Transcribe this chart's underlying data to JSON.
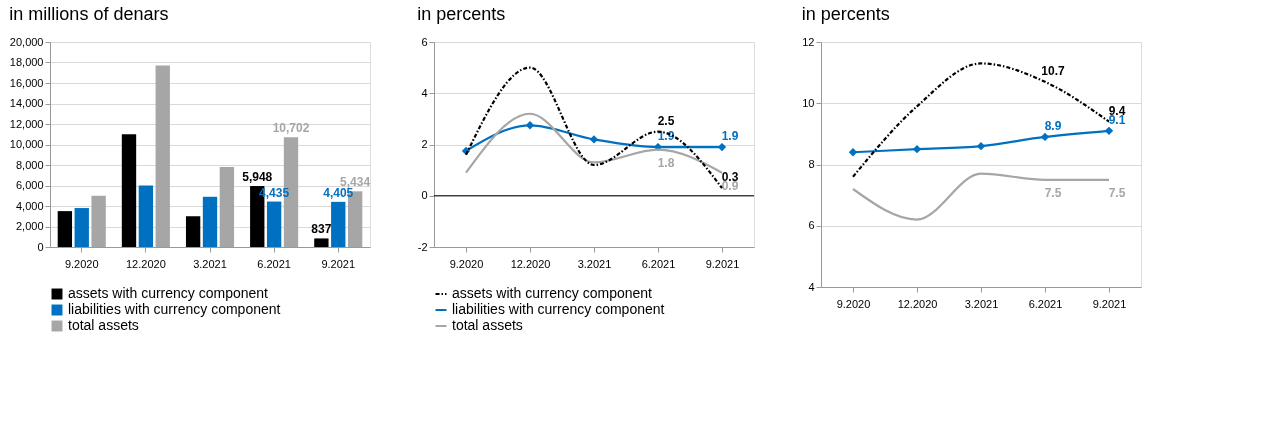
{
  "chart_data": [
    {
      "type": "bar",
      "title": "in millions of denars",
      "categories": [
        "9.2020",
        "12.2020",
        "3.2021",
        "6.2021",
        "9.2021"
      ],
      "ylim": [
        0,
        20000
      ],
      "yticks": [
        0,
        {
          "value": 2000,
          "label": "2,000"
        },
        {
          "value": 4000,
          "label": "4,000"
        },
        {
          "value": 6000,
          "label": "6,000"
        },
        {
          "value": 8000,
          "label": "8,000"
        },
        {
          "value": 10000,
          "label": "10,000"
        },
        {
          "value": 12000,
          "label": "12,000"
        },
        {
          "value": 14000,
          "label": "14,000"
        },
        {
          "value": 16000,
          "label": "16,000"
        },
        {
          "value": 18000,
          "label": "18,000"
        },
        {
          "value": 20000,
          "label": "20,000"
        }
      ],
      "grid": "y",
      "legend": "bottom",
      "series": [
        {
          "name": "assets with currency component",
          "color": "#000000",
          "values": [
            3500,
            11000,
            3000,
            5948,
            837
          ],
          "value_labels": [
            null,
            null,
            null,
            "5,948",
            "837"
          ]
        },
        {
          "name": "liabilities with currency component",
          "color": "#0070c0",
          "values": [
            3800,
            6000,
            4900,
            4435,
            4405
          ],
          "value_labels": [
            null,
            null,
            null,
            "4,435",
            "4,405"
          ]
        },
        {
          "name": "total assets",
          "color": "#a6a6a6",
          "values": [
            5000,
            17700,
            7800,
            10702,
            5434
          ],
          "value_labels": [
            null,
            null,
            null,
            "10,702",
            "5,434"
          ]
        }
      ]
    },
    {
      "type": "line",
      "title": "in percents",
      "categories": [
        "9.2020",
        "12.2020",
        "3.2021",
        "6.2021",
        "9.2021"
      ],
      "ylim": [
        -2,
        6
      ],
      "yticks": [
        -2,
        0,
        2,
        4,
        6
      ],
      "grid": "y",
      "legend": "bottom",
      "ref_lines": [
        {
          "axis": "y",
          "value": 0,
          "color": "#000000"
        }
      ],
      "series": [
        {
          "name": "assets with currency component",
          "color": "#000000",
          "line_style": "dashed",
          "marker": "none",
          "values": [
            1.6,
            5.0,
            1.2,
            2.5,
            0.3
          ],
          "value_labels": [
            null,
            null,
            null,
            "2.5",
            "0.3"
          ]
        },
        {
          "name": "liabilities with currency component",
          "color": "#0070c0",
          "line_style": "solid",
          "marker": "diamond",
          "values": [
            1.75,
            2.75,
            2.2,
            1.9,
            1.9
          ],
          "value_labels": [
            null,
            null,
            null,
            "1.9",
            "1.9"
          ]
        },
        {
          "name": "total assets",
          "color": "#a6a6a6",
          "line_style": "solid",
          "marker": "none",
          "values": [
            0.9,
            3.2,
            1.3,
            1.8,
            0.9
          ],
          "value_labels": [
            null,
            null,
            null,
            "1.8",
            "0.9"
          ]
        }
      ]
    },
    {
      "type": "line",
      "title": "in percents",
      "categories": [
        "9.2020",
        "12.2020",
        "3.2021",
        "6.2021",
        "9.2021"
      ],
      "ylim": [
        4,
        12
      ],
      "yticks": [
        4,
        6,
        8,
        10,
        12
      ],
      "grid": "y",
      "series": [
        {
          "color": "#000000",
          "line_style": "dashed",
          "marker": "none",
          "values": [
            7.6,
            9.9,
            11.3,
            10.7,
            9.4
          ],
          "value_labels": [
            null,
            null,
            null,
            "10.7",
            "9.4"
          ]
        },
        {
          "color": "#0070c0",
          "line_style": "solid",
          "marker": "diamond",
          "values": [
            8.4,
            8.5,
            8.6,
            8.9,
            9.1
          ],
          "value_labels": [
            null,
            null,
            null,
            "8.9",
            "9.1"
          ]
        },
        {
          "color": "#a6a6a6",
          "line_style": "solid",
          "marker": "none",
          "values": [
            7.2,
            6.2,
            7.7,
            7.5,
            7.5
          ],
          "value_labels": [
            null,
            null,
            null,
            "7.5",
            "7.5"
          ]
        }
      ]
    }
  ]
}
